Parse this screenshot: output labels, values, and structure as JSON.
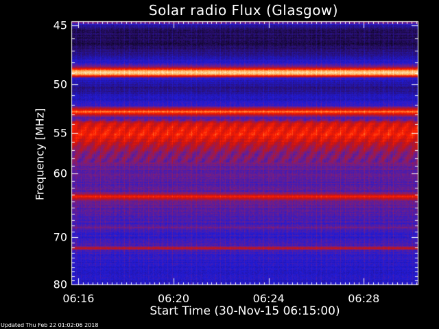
{
  "chart_data": {
    "type": "heatmap",
    "title": "Solar radio Flux (Glasgow)",
    "xlabel": "Start Time (30-Nov-15 06:15:00)",
    "ylabel": "Frequency [MHz]",
    "x_unit": "minutes after 06:15:00",
    "xlim": [
      0.7,
      15.3
    ],
    "ylim": [
      80.1,
      44.7
    ],
    "x_ticks": [
      {
        "value": 1,
        "label": "06:16"
      },
      {
        "value": 5,
        "label": "06:20"
      },
      {
        "value": 9,
        "label": "06:24"
      },
      {
        "value": 13,
        "label": "06:28"
      }
    ],
    "y_ticks": [
      {
        "value": 45,
        "label": "45"
      },
      {
        "value": 50,
        "label": "50"
      },
      {
        "value": 55,
        "label": "55"
      },
      {
        "value": 60,
        "label": "60"
      },
      {
        "value": 70,
        "label": "70"
      },
      {
        "value": 80,
        "label": "80"
      }
    ],
    "colormap": [
      "#000000",
      "#2a0f6e",
      "#1f1bd8",
      "#7a1e7e",
      "#c41414",
      "#ff1e00",
      "#ff9a3c",
      "#fff4c8"
    ],
    "frequency_profile": [
      [
        44.7,
        0.52
      ],
      [
        45.0,
        0.2
      ],
      [
        45.3,
        0.12
      ],
      [
        46.5,
        0.1
      ],
      [
        47.2,
        0.16
      ],
      [
        48.0,
        0.28
      ],
      [
        48.4,
        0.45
      ],
      [
        48.7,
        0.82
      ],
      [
        48.9,
        0.98
      ],
      [
        49.1,
        0.85
      ],
      [
        49.4,
        0.3
      ],
      [
        49.8,
        0.22
      ],
      [
        50.4,
        0.16
      ],
      [
        51.0,
        0.24
      ],
      [
        51.6,
        0.26
      ],
      [
        52.0,
        0.3
      ],
      [
        52.4,
        0.55
      ],
      [
        52.7,
        0.82
      ],
      [
        53.0,
        0.55
      ],
      [
        53.3,
        0.36
      ],
      [
        53.6,
        0.42
      ],
      [
        53.9,
        0.58
      ],
      [
        54.5,
        0.66
      ],
      [
        55.0,
        0.7
      ],
      [
        55.6,
        0.64
      ],
      [
        56.3,
        0.54
      ],
      [
        57.2,
        0.46
      ],
      [
        58.3,
        0.42
      ],
      [
        59.5,
        0.38
      ],
      [
        60.5,
        0.37
      ],
      [
        61.5,
        0.36
      ],
      [
        62.6,
        0.38
      ],
      [
        63.0,
        0.52
      ],
      [
        63.3,
        0.7
      ],
      [
        63.6,
        0.52
      ],
      [
        64.0,
        0.42
      ],
      [
        65.0,
        0.38
      ],
      [
        66.5,
        0.35
      ],
      [
        67.8,
        0.33
      ],
      [
        68.3,
        0.4
      ],
      [
        68.7,
        0.33
      ],
      [
        69.8,
        0.31
      ],
      [
        71.0,
        0.31
      ],
      [
        71.7,
        0.36
      ],
      [
        72.1,
        0.58
      ],
      [
        72.5,
        0.36
      ],
      [
        73.5,
        0.3
      ],
      [
        75.0,
        0.29
      ],
      [
        76.5,
        0.28
      ],
      [
        78.0,
        0.28
      ],
      [
        79.5,
        0.27
      ],
      [
        80.1,
        0.28
      ]
    ],
    "colorbar": false,
    "legend": false
  },
  "footer": {
    "updated": "Updated Thu Feb 22 01:02:06 2018"
  }
}
